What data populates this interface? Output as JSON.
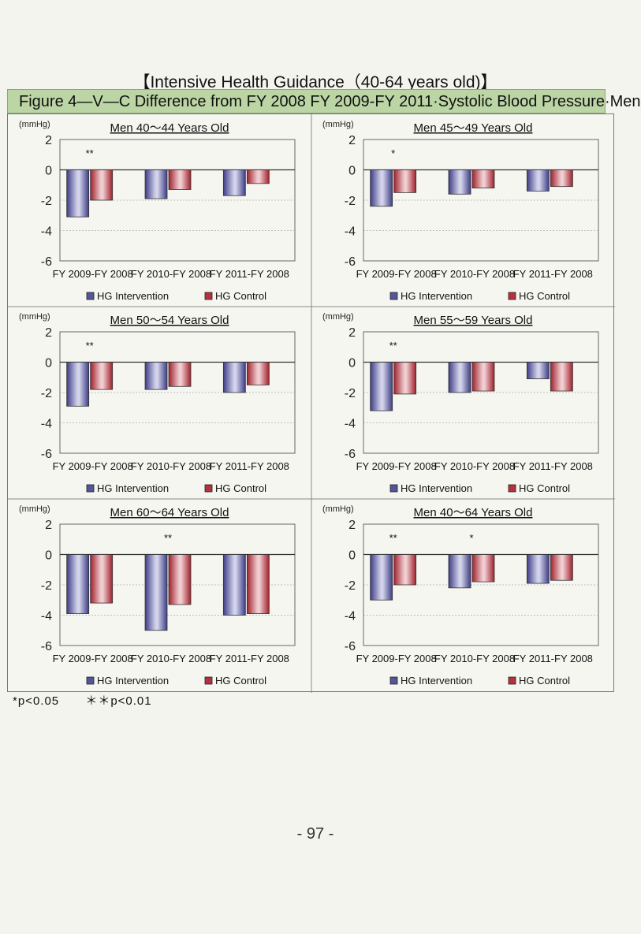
{
  "page_title": "【Intensive Health Guidance（40-64 years old)】",
  "figure_title": "Figure 4—V—C  Difference  from FY  2008  FY  2009-FY  2011·Systolic  Blood  Pressure·Men",
  "footnotes": [
    "*p<0.05",
    "＊＊p<0.01"
  ],
  "page_number": "- 97 -",
  "colors": {
    "intervention": "#55559a",
    "control": "#b5313f",
    "frame": "#777777"
  },
  "chart_data": [
    {
      "type": "bar",
      "title": "Men 40～44 Years Old",
      "ylabel": "(mmHg)",
      "ylim": [
        -6,
        2
      ],
      "yticks": [
        "2",
        "0",
        "-2",
        "-4",
        "-6"
      ],
      "categories": [
        "FY 2009-FY 2008",
        "FY 2010-FY 2008",
        "FY 2011-FY 2008"
      ],
      "series": [
        {
          "name": "HG Intervention",
          "values": [
            -3.1,
            -1.9,
            -1.7
          ]
        },
        {
          "name": "HG Control",
          "values": [
            -2.0,
            -1.3,
            -0.9
          ]
        }
      ],
      "significance": [
        "**",
        "",
        ""
      ],
      "legend": "bottom",
      "grid": true
    },
    {
      "type": "bar",
      "title": "Men 45～49 Years Old",
      "ylabel": "(mmHg)",
      "ylim": [
        -6,
        2
      ],
      "yticks": [
        "2",
        "0",
        "-2",
        "-4",
        "-6"
      ],
      "categories": [
        "FY 2009-FY 2008",
        "FY 2010-FY 2008",
        "FY 2011-FY 2008"
      ],
      "series": [
        {
          "name": "HG Intervention",
          "values": [
            -2.4,
            -1.6,
            -1.4
          ]
        },
        {
          "name": "HG Control",
          "values": [
            -1.5,
            -1.2,
            -1.1
          ]
        }
      ],
      "significance": [
        "*",
        "",
        ""
      ],
      "legend": "bottom",
      "grid": true
    },
    {
      "type": "bar",
      "title": "Men 50～54 Years Old",
      "ylabel": "(mmHg)",
      "ylim": [
        -6,
        2
      ],
      "yticks": [
        "2",
        "0",
        "-2",
        "-4",
        "-6"
      ],
      "categories": [
        "FY 2009-FY 2008",
        "FY 2010-FY 2008",
        "FY 2011-FY 2008"
      ],
      "series": [
        {
          "name": "HG Intervention",
          "values": [
            -2.9,
            -1.8,
            -2.0
          ]
        },
        {
          "name": "HG Control",
          "values": [
            -1.8,
            -1.6,
            -1.5
          ]
        }
      ],
      "significance": [
        "**",
        "",
        ""
      ],
      "legend": "bottom",
      "grid": true
    },
    {
      "type": "bar",
      "title": "Men 55～59 Years Old",
      "ylabel": "(mmHg)",
      "ylim": [
        -6,
        2
      ],
      "yticks": [
        "2",
        "0",
        "-2",
        "-4",
        "-6"
      ],
      "categories": [
        "FY 2009-FY 2008",
        "FY 2010-FY 2008",
        "FY 2011-FY 2008"
      ],
      "series": [
        {
          "name": "HG Intervention",
          "values": [
            -3.2,
            -2.0,
            -1.1
          ]
        },
        {
          "name": "HG Control",
          "values": [
            -2.1,
            -1.9,
            -1.9
          ]
        }
      ],
      "significance": [
        "**",
        "",
        ""
      ],
      "legend": "bottom",
      "grid": true
    },
    {
      "type": "bar",
      "title": "Men 60～64 Years Old",
      "ylabel": "(mmHg)",
      "ylim": [
        -6,
        2
      ],
      "yticks": [
        "2",
        "0",
        "-2",
        "-4",
        "-6"
      ],
      "categories": [
        "FY 2009-FY 2008",
        "FY 2010-FY 2008",
        "FY 2011-FY 2008"
      ],
      "series": [
        {
          "name": "HG Intervention",
          "values": [
            -3.9,
            -5.0,
            -4.0
          ]
        },
        {
          "name": "HG Control",
          "values": [
            -3.2,
            -3.3,
            -3.9
          ]
        }
      ],
      "significance": [
        "",
        "**",
        ""
      ],
      "legend": "bottom",
      "grid": true
    },
    {
      "type": "bar",
      "title": "Men 40～64 Years Old",
      "ylabel": "(mmHg)",
      "ylim": [
        -6,
        2
      ],
      "yticks": [
        "2",
        "0",
        "-2",
        "-4",
        "-6"
      ],
      "categories": [
        "FY 2009-FY 2008",
        "FY 2010-FY 2008",
        "FY 2011-FY 2008"
      ],
      "series": [
        {
          "name": "HG Intervention",
          "values": [
            -3.0,
            -2.2,
            -1.9
          ]
        },
        {
          "name": "HG Control",
          "values": [
            -2.0,
            -1.8,
            -1.7
          ]
        }
      ],
      "significance": [
        "**",
        "*",
        ""
      ],
      "legend": "bottom",
      "grid": true
    }
  ]
}
